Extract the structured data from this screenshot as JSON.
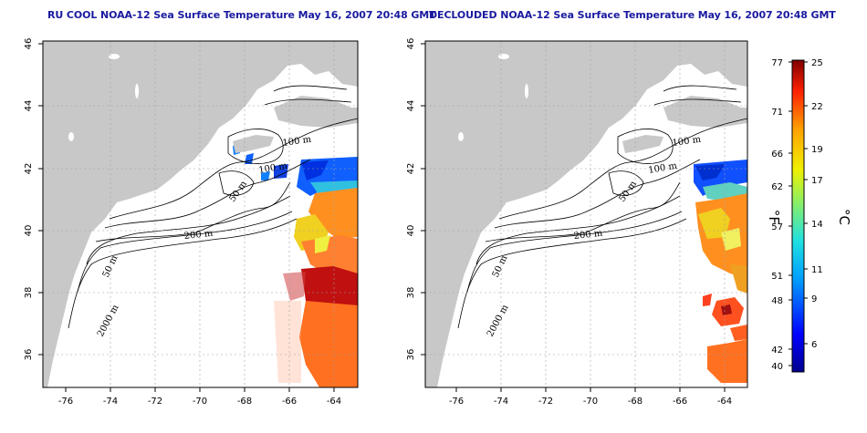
{
  "titles": {
    "left": "RU COOL NOAA-12 Sea Surface Temperature May 16, 2007 20:48 GMT",
    "right": "DECLOUDED NOAA-12 Sea Surface Temperature May 16, 2007 20:48 GMT"
  },
  "axes": {
    "lon_ticks": [
      "-76",
      "-74",
      "-72",
      "-70",
      "-68",
      "-66",
      "-64"
    ],
    "lat_ticks": [
      "36",
      "38",
      "40",
      "42",
      "44",
      "46"
    ]
  },
  "contour_labels": {
    "c100_left": "100 m",
    "c100b_left": "100 m",
    "c50a_left": "50 m",
    "c50b_left": "50 m",
    "c200_left": "200 m",
    "c2000_left": "2000 m",
    "c100_right": "100 m",
    "c100b_right": "100 m",
    "c50a_right": "50 m",
    "c50b_right": "50 m",
    "c200_right": "200 m",
    "c2000_right": "2000 m"
  },
  "colorbar": {
    "fahrenheit_ticks": [
      "77",
      "71",
      "66",
      "62",
      "57",
      "51",
      "48",
      "42",
      "40"
    ],
    "celsius_ticks": [
      "25",
      "22",
      "19",
      "17",
      "14",
      "11",
      "9",
      "6"
    ],
    "f_unit": "°F",
    "c_unit": "°C"
  },
  "colors": {
    "land": "#c8c8c8",
    "ocean": "#ffffff",
    "title": "#1a1aa0",
    "grid": "#a0a0a0"
  }
}
